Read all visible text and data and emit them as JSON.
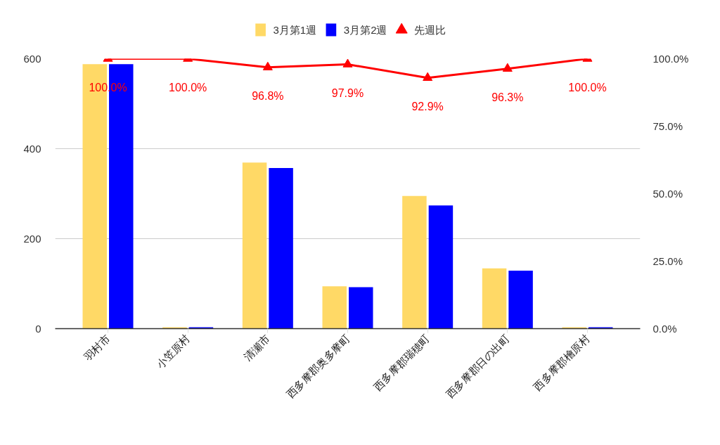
{
  "chart_data": {
    "type": "bar",
    "categories": [
      "羽村市",
      "小笠原村",
      "清瀬市",
      "西多摩郡奥多摩町",
      "西多摩郡瑞穂町",
      "西多摩郡日の出町",
      "西多摩郡檜原村"
    ],
    "series": [
      {
        "name": "3月第1週",
        "color": "#ffd966",
        "values": [
          588,
          3,
          369,
          94,
          295,
          134,
          3
        ]
      },
      {
        "name": "3月第2週",
        "color": "#0000ff",
        "values": [
          588,
          3,
          357,
          92,
          274,
          129,
          3
        ]
      },
      {
        "name": "先週比",
        "type": "line",
        "axis": "y2",
        "color": "#ff0000",
        "marker": "triangle",
        "values": [
          100.0,
          100.0,
          96.8,
          97.9,
          92.9,
          96.3,
          100.0
        ],
        "value_labels": [
          "100.0%",
          "100.0%",
          "96.8%",
          "97.9%",
          "92.9%",
          "96.3%",
          "100.0%"
        ]
      }
    ],
    "ylim": [
      0,
      600
    ],
    "yticks": [
      0,
      200,
      400,
      600
    ],
    "y2lim": [
      0,
      100
    ],
    "y2ticks": [
      {
        "value": 0,
        "label": "0.0%"
      },
      {
        "value": 25,
        "label": "25.0%"
      },
      {
        "value": 50,
        "label": "50.0%"
      },
      {
        "value": 75,
        "label": "75.0%"
      },
      {
        "value": 100,
        "label": "100.0%"
      }
    ],
    "grid": "y",
    "legend": "top"
  }
}
